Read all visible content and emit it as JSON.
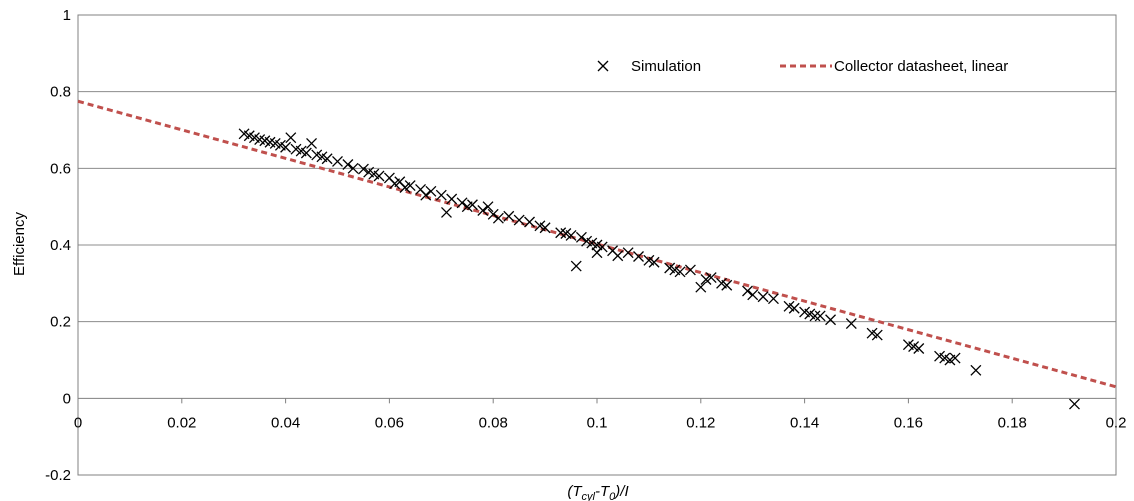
{
  "chart_data": {
    "type": "scatter",
    "xlabel": {
      "parts": [
        {
          "t": "(T",
          "sub": false
        },
        {
          "t": "cyl",
          "sub": true
        },
        {
          "t": "-T",
          "sub": false
        },
        {
          "t": "0",
          "sub": true
        },
        {
          "t": ")/I",
          "sub": false
        }
      ]
    },
    "ylabel": "Efficiency",
    "xlim": [
      0,
      0.2
    ],
    "ylim": [
      -0.2,
      1
    ],
    "x_ticks": [
      "0",
      "0.02",
      "0.04",
      "0.06",
      "0.08",
      "0.1",
      "0.12",
      "0.14",
      "0.16",
      "0.18",
      "0.2"
    ],
    "y_ticks": [
      "-0.2",
      "0",
      "0.2",
      "0.4",
      "0.6",
      "0.8",
      "1"
    ],
    "grid": "horizontal",
    "legend_placement": "top-right",
    "series": [
      {
        "name": "Simulation",
        "kind": "scatter",
        "marker": "x",
        "color": "#000000",
        "points": [
          [
            0.032,
            0.69
          ],
          [
            0.033,
            0.685
          ],
          [
            0.034,
            0.68
          ],
          [
            0.035,
            0.675
          ],
          [
            0.036,
            0.672
          ],
          [
            0.037,
            0.668
          ],
          [
            0.038,
            0.665
          ],
          [
            0.039,
            0.66
          ],
          [
            0.04,
            0.655
          ],
          [
            0.041,
            0.68
          ],
          [
            0.042,
            0.65
          ],
          [
            0.043,
            0.645
          ],
          [
            0.044,
            0.64
          ],
          [
            0.045,
            0.665
          ],
          [
            0.046,
            0.635
          ],
          [
            0.047,
            0.63
          ],
          [
            0.048,
            0.625
          ],
          [
            0.05,
            0.618
          ],
          [
            0.052,
            0.61
          ],
          [
            0.053,
            0.6
          ],
          [
            0.055,
            0.598
          ],
          [
            0.056,
            0.59
          ],
          [
            0.057,
            0.585
          ],
          [
            0.058,
            0.58
          ],
          [
            0.06,
            0.575
          ],
          [
            0.061,
            0.56
          ],
          [
            0.062,
            0.565
          ],
          [
            0.063,
            0.55
          ],
          [
            0.064,
            0.555
          ],
          [
            0.066,
            0.545
          ],
          [
            0.067,
            0.53
          ],
          [
            0.068,
            0.54
          ],
          [
            0.07,
            0.53
          ],
          [
            0.071,
            0.485
          ],
          [
            0.072,
            0.52
          ],
          [
            0.074,
            0.51
          ],
          [
            0.075,
            0.5
          ],
          [
            0.076,
            0.505
          ],
          [
            0.078,
            0.49
          ],
          [
            0.079,
            0.5
          ],
          [
            0.08,
            0.48
          ],
          [
            0.081,
            0.47
          ],
          [
            0.083,
            0.475
          ],
          [
            0.085,
            0.465
          ],
          [
            0.087,
            0.46
          ],
          [
            0.089,
            0.45
          ],
          [
            0.09,
            0.445
          ],
          [
            0.093,
            0.432
          ],
          [
            0.094,
            0.43
          ],
          [
            0.095,
            0.425
          ],
          [
            0.096,
            0.345
          ],
          [
            0.097,
            0.42
          ],
          [
            0.098,
            0.41
          ],
          [
            0.099,
            0.405
          ],
          [
            0.1,
            0.4
          ],
          [
            0.1,
            0.38
          ],
          [
            0.101,
            0.395
          ],
          [
            0.103,
            0.385
          ],
          [
            0.104,
            0.372
          ],
          [
            0.106,
            0.38
          ],
          [
            0.108,
            0.37
          ],
          [
            0.11,
            0.36
          ],
          [
            0.111,
            0.355
          ],
          [
            0.114,
            0.34
          ],
          [
            0.115,
            0.335
          ],
          [
            0.116,
            0.33
          ],
          [
            0.118,
            0.335
          ],
          [
            0.12,
            0.29
          ],
          [
            0.121,
            0.31
          ],
          [
            0.122,
            0.315
          ],
          [
            0.124,
            0.3
          ],
          [
            0.125,
            0.295
          ],
          [
            0.129,
            0.28
          ],
          [
            0.13,
            0.27
          ],
          [
            0.132,
            0.265
          ],
          [
            0.134,
            0.26
          ],
          [
            0.137,
            0.24
          ],
          [
            0.138,
            0.235
          ],
          [
            0.14,
            0.225
          ],
          [
            0.141,
            0.22
          ],
          [
            0.142,
            0.215
          ],
          [
            0.143,
            0.215
          ],
          [
            0.145,
            0.205
          ],
          [
            0.149,
            0.195
          ],
          [
            0.153,
            0.17
          ],
          [
            0.154,
            0.165
          ],
          [
            0.16,
            0.14
          ],
          [
            0.161,
            0.135
          ],
          [
            0.162,
            0.13
          ],
          [
            0.166,
            0.11
          ],
          [
            0.167,
            0.105
          ],
          [
            0.168,
            0.1
          ],
          [
            0.169,
            0.105
          ],
          [
            0.173,
            0.073
          ],
          [
            0.192,
            -0.015
          ]
        ]
      },
      {
        "name": "Collector datasheet, linear",
        "kind": "line",
        "style": "dashed",
        "color": "#c0504d",
        "points": [
          [
            0,
            0.775
          ],
          [
            0.2,
            0.03
          ]
        ]
      }
    ]
  }
}
